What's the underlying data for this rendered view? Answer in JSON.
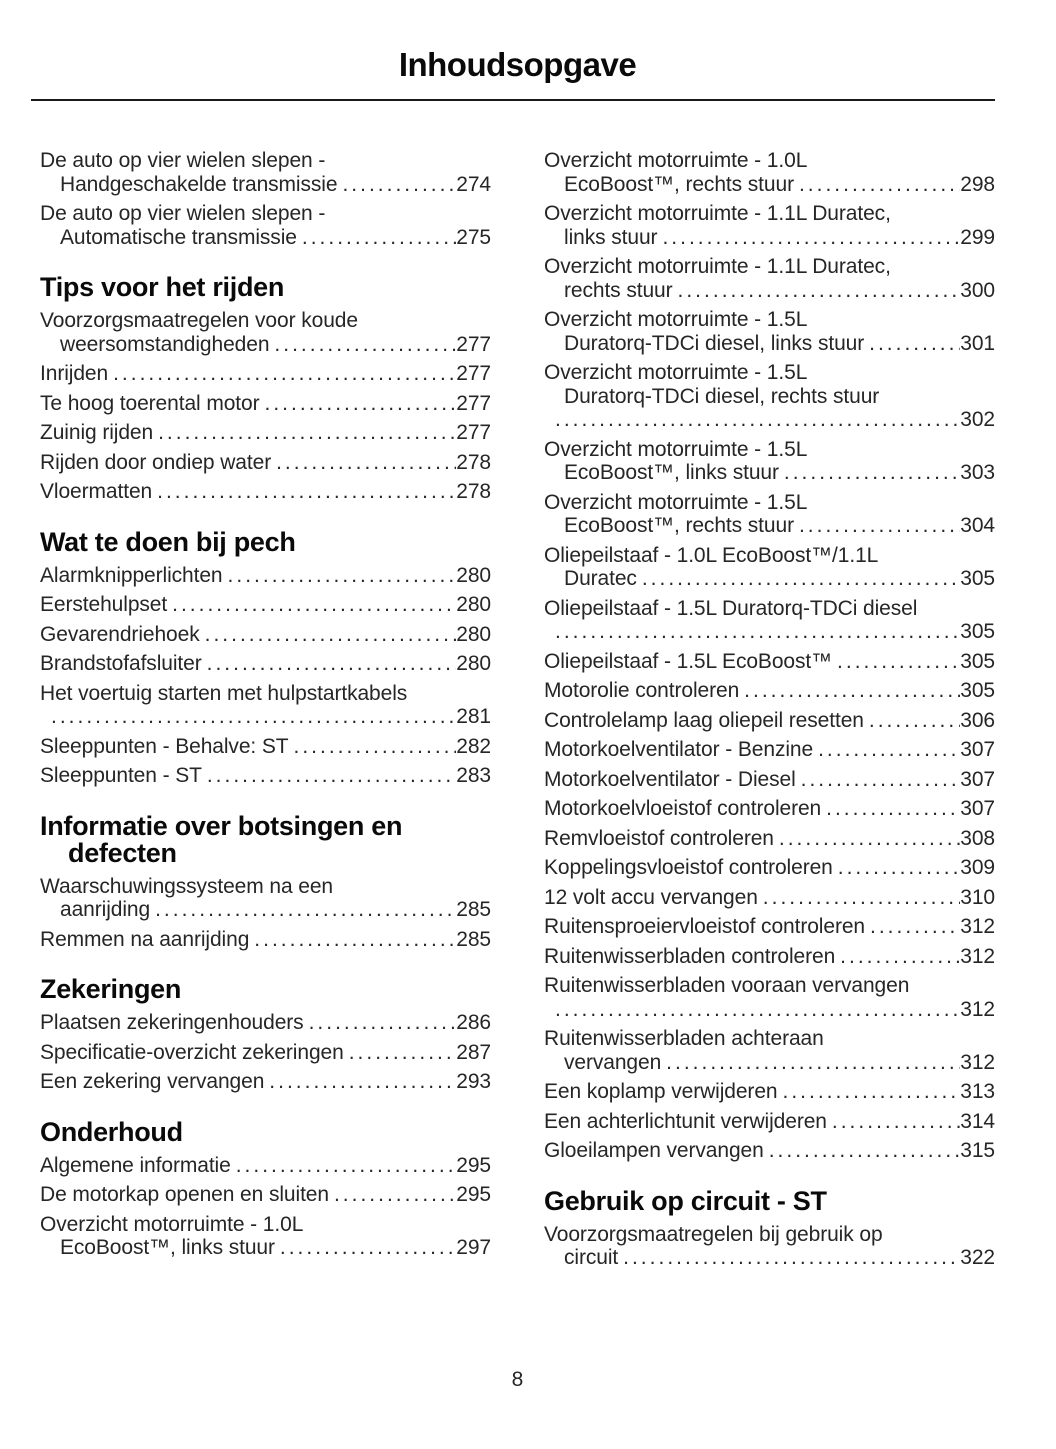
{
  "title": "Inhoudsopgave",
  "page_number": "8",
  "ink_color": "#1a1a1a",
  "columns": [
    {
      "blocks": [
        {
          "type": "entry",
          "lines": [
            "De auto op vier wielen slepen -",
            "Handgeschakelde transmissie"
          ],
          "page": "274"
        },
        {
          "type": "entry",
          "lines": [
            "De auto op vier wielen slepen -",
            "Automatische transmissie"
          ],
          "page": "275"
        },
        {
          "type": "heading",
          "lines": [
            "Tips voor het rijden"
          ]
        },
        {
          "type": "entry",
          "lines": [
            "Voorzorgsmaatregelen voor koude",
            "weersomstandigheden"
          ],
          "page": "277"
        },
        {
          "type": "entry",
          "lines": [
            "Inrijden"
          ],
          "page": "277"
        },
        {
          "type": "entry",
          "lines": [
            "Te hoog toerental motor"
          ],
          "page": "277"
        },
        {
          "type": "entry",
          "lines": [
            "Zuinig rijden"
          ],
          "page": "277"
        },
        {
          "type": "entry",
          "lines": [
            "Rijden door ondiep water"
          ],
          "page": "278"
        },
        {
          "type": "entry",
          "lines": [
            "Vloermatten"
          ],
          "page": "278"
        },
        {
          "type": "heading",
          "lines": [
            "Wat te doen bij pech"
          ]
        },
        {
          "type": "entry",
          "lines": [
            "Alarmknipperlichten"
          ],
          "page": "280"
        },
        {
          "type": "entry",
          "lines": [
            "Eerstehulpset"
          ],
          "page": "280"
        },
        {
          "type": "entry",
          "lines": [
            "Gevarendriehoek"
          ],
          "page": "280"
        },
        {
          "type": "entry",
          "lines": [
            "Brandstofafsluiter"
          ],
          "page": "280"
        },
        {
          "type": "entry",
          "lines": [
            "Het voertuig starten met hulpstartkabels",
            ""
          ],
          "page": "281"
        },
        {
          "type": "entry",
          "lines": [
            "Sleeppunten - Behalve: ST"
          ],
          "page": "282"
        },
        {
          "type": "entry",
          "lines": [
            "Sleeppunten - ST"
          ],
          "page": "283"
        },
        {
          "type": "heading",
          "lines": [
            "Informatie over botsingen en",
            "defecten"
          ]
        },
        {
          "type": "entry",
          "lines": [
            "Waarschuwingssysteem na een",
            "aanrijding"
          ],
          "page": "285"
        },
        {
          "type": "entry",
          "lines": [
            "Remmen na aanrijding"
          ],
          "page": "285"
        },
        {
          "type": "heading",
          "lines": [
            "Zekeringen"
          ]
        },
        {
          "type": "entry",
          "lines": [
            "Plaatsen zekeringenhouders"
          ],
          "page": "286"
        },
        {
          "type": "entry",
          "lines": [
            "Specificatie-overzicht zekeringen"
          ],
          "page": "287"
        },
        {
          "type": "entry",
          "lines": [
            "Een zekering vervangen"
          ],
          "page": "293"
        },
        {
          "type": "heading",
          "lines": [
            "Onderhoud"
          ]
        },
        {
          "type": "entry",
          "lines": [
            "Algemene informatie"
          ],
          "page": "295"
        },
        {
          "type": "entry",
          "lines": [
            "De motorkap openen en sluiten"
          ],
          "page": "295"
        },
        {
          "type": "entry",
          "lines": [
            "Overzicht motorruimte - 1.0L",
            "EcoBoost™, links stuur"
          ],
          "page": "297"
        }
      ]
    },
    {
      "blocks": [
        {
          "type": "entry",
          "lines": [
            "Overzicht motorruimte - 1.0L",
            "EcoBoost™, rechts stuur"
          ],
          "page": "298"
        },
        {
          "type": "entry",
          "lines": [
            "Overzicht motorruimte - 1.1L Duratec,",
            "links stuur"
          ],
          "page": "299"
        },
        {
          "type": "entry",
          "lines": [
            "Overzicht motorruimte - 1.1L Duratec,",
            "rechts stuur"
          ],
          "page": "300"
        },
        {
          "type": "entry",
          "lines": [
            "Overzicht motorruimte - 1.5L",
            "Duratorq-TDCi diesel, links stuur"
          ],
          "page": "301"
        },
        {
          "type": "entry",
          "lines": [
            "Overzicht motorruimte - 1.5L",
            "Duratorq-TDCi diesel, rechts stuur",
            ""
          ],
          "page": "302"
        },
        {
          "type": "entry",
          "lines": [
            "Overzicht motorruimte - 1.5L",
            "EcoBoost™, links stuur"
          ],
          "page": "303"
        },
        {
          "type": "entry",
          "lines": [
            "Overzicht motorruimte - 1.5L",
            "EcoBoost™, rechts stuur"
          ],
          "page": "304"
        },
        {
          "type": "entry",
          "lines": [
            "Oliepeilstaaf - 1.0L EcoBoost™/1.1L",
            "Duratec"
          ],
          "page": "305"
        },
        {
          "type": "entry",
          "lines": [
            "Oliepeilstaaf - 1.5L Duratorq-TDCi diesel",
            ""
          ],
          "page": "305"
        },
        {
          "type": "entry",
          "lines": [
            "Oliepeilstaaf - 1.5L EcoBoost™"
          ],
          "page": "305"
        },
        {
          "type": "entry",
          "lines": [
            "Motorolie controleren"
          ],
          "page": "305"
        },
        {
          "type": "entry",
          "lines": [
            "Controlelamp laag oliepeil resetten"
          ],
          "page": "306"
        },
        {
          "type": "entry",
          "lines": [
            "Motorkoelventilator - Benzine"
          ],
          "page": "307"
        },
        {
          "type": "entry",
          "lines": [
            "Motorkoelventilator - Diesel"
          ],
          "page": "307"
        },
        {
          "type": "entry",
          "lines": [
            "Motorkoelvloeistof controleren"
          ],
          "page": "307"
        },
        {
          "type": "entry",
          "lines": [
            "Remvloeistof controleren"
          ],
          "page": "308"
        },
        {
          "type": "entry",
          "lines": [
            "Koppelingsvloeistof controleren"
          ],
          "page": "309"
        },
        {
          "type": "entry",
          "lines": [
            "12 volt accu vervangen"
          ],
          "page": "310"
        },
        {
          "type": "entry",
          "lines": [
            "Ruitensproeiervloeistof controleren"
          ],
          "page": "312"
        },
        {
          "type": "entry",
          "lines": [
            "Ruitenwisserbladen controleren"
          ],
          "page": "312"
        },
        {
          "type": "entry",
          "lines": [
            "Ruitenwisserbladen vooraan vervangen",
            ""
          ],
          "page": "312"
        },
        {
          "type": "entry",
          "lines": [
            "Ruitenwisserbladen achteraan",
            "vervangen"
          ],
          "page": "312"
        },
        {
          "type": "entry",
          "lines": [
            "Een koplamp verwijderen"
          ],
          "page": "313"
        },
        {
          "type": "entry",
          "lines": [
            "Een achterlichtunit verwijderen"
          ],
          "page": "314"
        },
        {
          "type": "entry",
          "lines": [
            "Gloeilampen vervangen"
          ],
          "page": "315"
        },
        {
          "type": "heading",
          "lines": [
            "Gebruik op circuit - ST"
          ]
        },
        {
          "type": "entry",
          "lines": [
            "Voorzorgsmaatregelen bij gebruik op",
            "circuit"
          ],
          "page": "322"
        }
      ]
    }
  ]
}
